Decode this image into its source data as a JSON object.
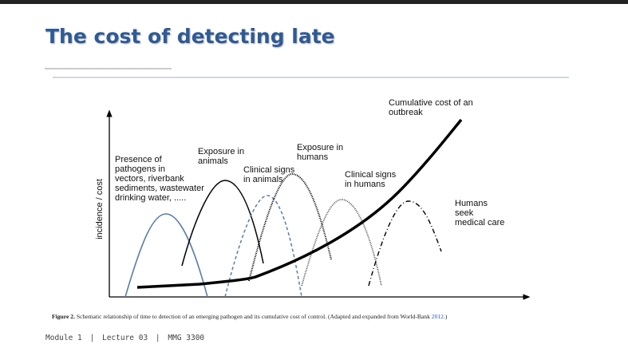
{
  "header": {
    "title": "The cost of detecting late"
  },
  "figure": {
    "y_axis_label": "incidence / cost",
    "labels": {
      "pathogens": [
        "Presence of",
        "pathogens in",
        "vectors, riverbank",
        "sediments, wastewater",
        "drinking water, ....."
      ],
      "exposure_animals": [
        "Exposure in",
        "animals"
      ],
      "clinical_animals": [
        "Clinical signs",
        "in animals"
      ],
      "exposure_humans": [
        "Exposure in",
        "humans"
      ],
      "clinical_humans": [
        "Clinical signs",
        "in humans"
      ],
      "medical_care": [
        "Humans",
        "seek",
        "medical care"
      ],
      "cumulative_cost": [
        "Cumulative cost of an",
        "outbreak"
      ]
    },
    "caption": {
      "label": "Figure 2.",
      "text": "Schematic relationship of time to detection of an emerging pathogen and its cumulative cost of control. (Adapted and expanded from World-Bank ",
      "link": "2012",
      "end": ".)"
    }
  },
  "footer": {
    "items": [
      "Module 1",
      "Lecture 03",
      "MMG 3300"
    ],
    "separator": "|"
  }
}
